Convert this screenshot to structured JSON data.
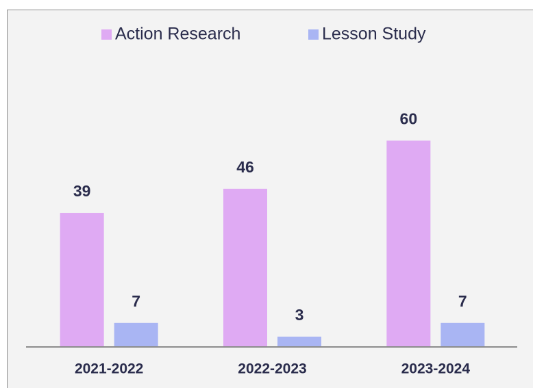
{
  "chart_data": {
    "type": "bar",
    "categories": [
      "2021-2022",
      "2022-2023",
      "2023-2024"
    ],
    "series": [
      {
        "name": "Action Research",
        "color": "#dfaaf3",
        "values": [
          39,
          46,
          60
        ]
      },
      {
        "name": "Lesson Study",
        "color": "#a9b5f3",
        "values": [
          7,
          3,
          7
        ]
      }
    ],
    "ylim": [
      0,
      80
    ],
    "legend": "top"
  }
}
